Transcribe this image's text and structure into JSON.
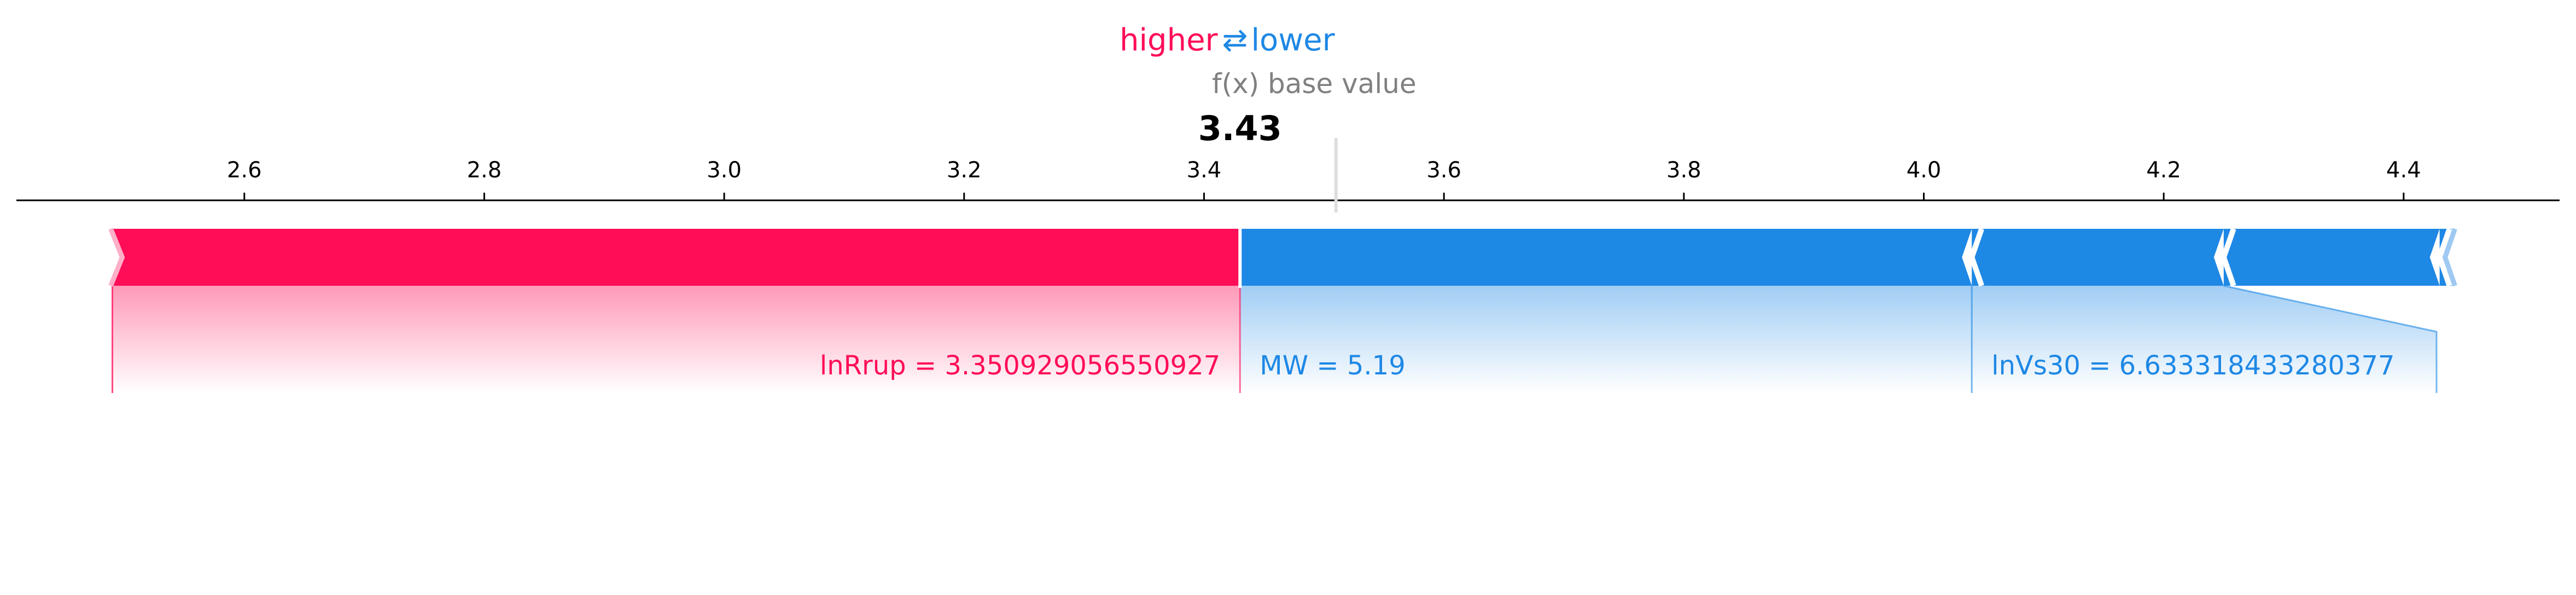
{
  "legend": {
    "higher": "higher",
    "arrows": "⇄",
    "lower": "lower"
  },
  "axis_titles": {
    "fx": "f(x)",
    "base": "base value"
  },
  "colors": {
    "positive": "#ff0d57",
    "negative": "#1e88e5",
    "axis": "#000000",
    "muted": "#808080"
  },
  "chart_data": {
    "type": "force",
    "output_value": 3.43,
    "output_label": "3.43",
    "base_value": 3.51,
    "xlim": [
      2.41,
      4.53
    ],
    "ticks": [
      2.6,
      2.8,
      3.0,
      3.2,
      3.4,
      3.6,
      3.8,
      4.0,
      4.2,
      4.4
    ],
    "tick_labels": [
      "2.6",
      "2.8",
      "3.0",
      "3.2",
      "3.4",
      "3.6",
      "3.8",
      "4.0",
      "4.2",
      "4.4"
    ],
    "positive_features": [
      {
        "label": "lnRrup = 3.350929056550927",
        "start": 2.49,
        "end": 3.43
      }
    ],
    "negative_features": [
      {
        "label": "MW = 5.19",
        "start": 3.43,
        "end": 4.04
      },
      {
        "label": "lnVs30 = 6.633318433280377",
        "start": 4.04,
        "end": 4.25
      },
      {
        "label": "",
        "start": 4.25,
        "end": 4.43
      },
      {
        "label": "",
        "start": 4.43,
        "end": 4.44
      }
    ]
  }
}
